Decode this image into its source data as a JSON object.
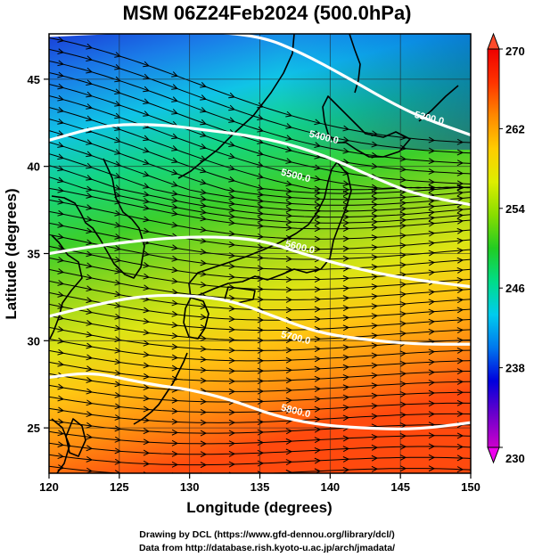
{
  "title": "MSM 06Z24Feb2024 (500.0hPa)",
  "chart_data": {
    "type": "heatmap",
    "xlabel": "Longitude (degrees)",
    "ylabel": "Latitude  (degrees)",
    "xlim": [
      120,
      150
    ],
    "ylim": [
      22.4,
      47.6
    ],
    "x_ticks": [
      "120",
      "125",
      "130",
      "135",
      "140",
      "145",
      "150"
    ],
    "x_tick_values": [
      120,
      125,
      130,
      135,
      140,
      145,
      150
    ],
    "y_ticks": [
      "25",
      "30",
      "35",
      "40",
      "45"
    ],
    "y_tick_values": [
      25,
      30,
      35,
      40,
      45
    ],
    "grid": true,
    "colorbar": {
      "placement": "right",
      "min": 230,
      "max": 270,
      "tick_labels": [
        "270",
        "262",
        "254",
        "246",
        "238",
        "230"
      ],
      "tick_values": [
        270,
        262,
        254,
        246,
        238,
        230
      ],
      "colors": [
        "#cc00cc",
        "#6a00cc",
        "#0000dd",
        "#0077ee",
        "#00ccee",
        "#00dd88",
        "#22cc22",
        "#88dd00",
        "#ddee00",
        "#ffcc00",
        "#ff8800",
        "#ff3300",
        "#ee0000"
      ]
    },
    "contours": [
      {
        "label": "5300.0",
        "points": [
          [
            120,
            47.5
          ],
          [
            125,
            47.7
          ],
          [
            130,
            47.8
          ],
          [
            135,
            47.5
          ],
          [
            138,
            46.5
          ],
          [
            141,
            45.2
          ],
          [
            144,
            43.8
          ],
          [
            146.5,
            42.8
          ],
          [
            150,
            41.8
          ]
        ],
        "label_at": [
          147,
          42.6
        ]
      },
      {
        "label": "5400.0",
        "points": [
          [
            120,
            41.5
          ],
          [
            124,
            42.4
          ],
          [
            128,
            42.4
          ],
          [
            131,
            42.1
          ],
          [
            134,
            41.8
          ],
          [
            137,
            41.3
          ],
          [
            140,
            40.5
          ],
          [
            143,
            39.4
          ],
          [
            146,
            38.4
          ],
          [
            150,
            37.8
          ]
        ],
        "label_at": [
          139.5,
          41.5
        ]
      },
      {
        "label": "5500.0",
        "points": [
          [
            120,
            35.0
          ],
          [
            123,
            35.4
          ],
          [
            127,
            35.8
          ],
          [
            131,
            36.0
          ],
          [
            135,
            35.8
          ],
          [
            138,
            35.0
          ],
          [
            141,
            34.3
          ],
          [
            145,
            33.6
          ],
          [
            150,
            33.1
          ]
        ],
        "label_at": [
          137.5,
          39.3
        ]
      },
      {
        "label": "5600.0",
        "points": [
          [
            120,
            31.4
          ],
          [
            124,
            32.2
          ],
          [
            127,
            32.6
          ],
          [
            130,
            32.6
          ],
          [
            133,
            32.3
          ],
          [
            136,
            31.4
          ],
          [
            139,
            30.5
          ],
          [
            142,
            30.1
          ],
          [
            146,
            29.8
          ],
          [
            150,
            29.8
          ]
        ],
        "label_at": [
          137.8,
          35.2
        ]
      },
      {
        "label": "5700.0",
        "points": [
          [
            120,
            27.9
          ],
          [
            123,
            28.2
          ],
          [
            126,
            27.7
          ],
          [
            128,
            27.4
          ],
          [
            130,
            27.2
          ],
          [
            133,
            26.6
          ],
          [
            136,
            25.7
          ],
          [
            139,
            25.2
          ],
          [
            142,
            25.0
          ],
          [
            146,
            24.9
          ],
          [
            150,
            25.3
          ]
        ],
        "label_at": [
          137.5,
          30.0
        ]
      },
      {
        "label": "5800.0",
        "points": [],
        "label_at": [
          137.5,
          25.8
        ]
      }
    ]
  },
  "credits": {
    "line1": "Drawing by DCL (https://www.gfd-dennou.org/library/dcl/)",
    "line2": "Data from http://database.rish.kyoto-u.ac.jp/arch/jmadata/"
  }
}
